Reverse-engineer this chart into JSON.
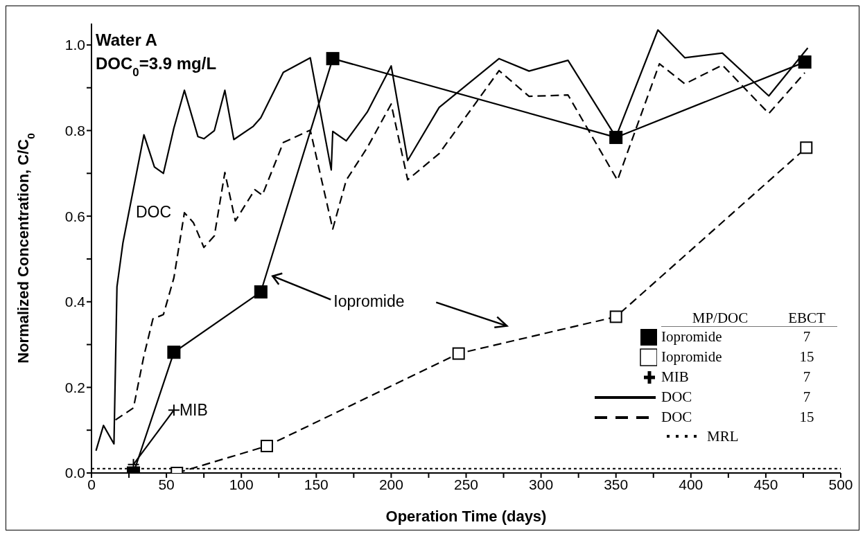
{
  "chart_data": {
    "type": "line",
    "xlabel": "Operation Time (days)",
    "ylabel": "Normalized Concentration, C/C$_{0}$",
    "legend_title": "MP/DOC EBCT",
    "legend": "bottom right",
    "grid": false,
    "xlim": [
      0,
      500
    ],
    "ylim": [
      0,
      1.05
    ],
    "xticks": [
      0,
      {
        "value": 25,
        "label": null
      },
      50,
      {
        "value": 75,
        "label": null
      },
      100,
      {
        "value": 125,
        "label": null
      },
      150,
      {
        "value": 175,
        "label": null
      },
      200,
      {
        "value": 225,
        "label": null
      },
      250,
      {
        "value": 275,
        "label": null
      },
      300,
      {
        "value": 325,
        "label": null
      },
      350,
      {
        "value": 375,
        "label": null
      },
      400,
      {
        "value": 425,
        "label": null
      },
      450,
      {
        "value": 475,
        "label": null
      },
      500
    ],
    "yticks": [
      {
        "value": 0,
        "label": "0.0"
      },
      {
        "value": 0.1,
        "label": null
      },
      {
        "value": 0.2,
        "label": "0.2"
      },
      {
        "value": 0.3,
        "label": null
      },
      {
        "value": 0.4,
        "label": "0.4"
      },
      {
        "value": 0.5,
        "label": null
      },
      {
        "value": 0.6,
        "label": "0.6"
      },
      {
        "value": 0.7,
        "label": null
      },
      {
        "value": 0.8,
        "label": "0.8"
      },
      {
        "value": 0.9,
        "label": null
      },
      {
        "value": 1.0,
        "label": "1.0"
      }
    ],
    "series": [
      {
        "name": "Iopromide 7",
        "color": "#000000",
        "marker": "square",
        "line_style": "solid",
        "x": [
          28,
          55,
          113,
          161,
          350,
          476
        ],
        "values": [
          0,
          0.282,
          0.423,
          0.968,
          0.784,
          0.96
        ]
      },
      {
        "name": "Iopromide 15",
        "color": "#000000",
        "marker": "square_open",
        "line_style": "dashed",
        "x": [
          57,
          117,
          245,
          350,
          477
        ],
        "values": [
          0,
          0.063,
          0.279,
          0.365,
          0.76
        ]
      },
      {
        "name": "MIB 7",
        "color": "#000000",
        "marker": "cross",
        "line_style": "solid",
        "x": [
          28,
          55
        ],
        "values": [
          0.02,
          0.147
        ]
      },
      {
        "name": "DOC 7",
        "color": "#000000",
        "marker": "none",
        "line_style": "solid",
        "x": [
          3,
          8,
          15,
          17,
          21,
          35,
          42,
          48,
          55,
          62,
          71,
          75,
          82,
          89,
          95,
          108,
          113,
          128,
          146,
          160,
          161,
          170,
          184,
          200,
          211,
          232,
          272,
          292,
          318,
          350,
          378,
          396,
          421,
          452,
          478
        ],
        "values": [
          0.052,
          0.111,
          0.068,
          0.435,
          0.538,
          0.79,
          0.715,
          0.7,
          0.806,
          0.894,
          0.786,
          0.781,
          0.8,
          0.894,
          0.779,
          0.81,
          0.83,
          0.936,
          0.97,
          0.708,
          0.798,
          0.776,
          0.843,
          0.951,
          0.73,
          0.854,
          0.968,
          0.939,
          0.964,
          0.785,
          1.035,
          0.97,
          0.981,
          0.881,
          0.993
        ]
      },
      {
        "name": "DOC 15",
        "color": "#000000",
        "marker": "none",
        "line_style": "dashed",
        "x": [
          16,
          28,
          35,
          41,
          48,
          55,
          62,
          68,
          75,
          82,
          89,
          96,
          109,
          114,
          128,
          146,
          161,
          170,
          184,
          200,
          211,
          232,
          272,
          292,
          318,
          351,
          379,
          396,
          421,
          452,
          476
        ],
        "values": [
          0.124,
          0.152,
          0.274,
          0.36,
          0.37,
          0.456,
          0.608,
          0.585,
          0.527,
          0.554,
          0.702,
          0.589,
          0.662,
          0.649,
          0.772,
          0.801,
          0.57,
          0.684,
          0.76,
          0.862,
          0.685,
          0.746,
          0.94,
          0.88,
          0.883,
          0.684,
          0.956,
          0.909,
          0.953,
          0.84,
          0.935
        ]
      }
    ],
    "ref_lines": [
      {
        "axis": "y",
        "value": 0.01,
        "label": "MRL",
        "color": "#000000",
        "line_style": "dotted"
      }
    ],
    "annotations": [
      "Water A",
      "DOC$_{0}$=3.9 mg/L",
      "DOC",
      {
        "text": "MIB",
        "x": 55,
        "y": 0.147
      },
      {
        "text": "Iopromide",
        "x": 119,
        "y": 0.46
      }
    ]
  }
}
